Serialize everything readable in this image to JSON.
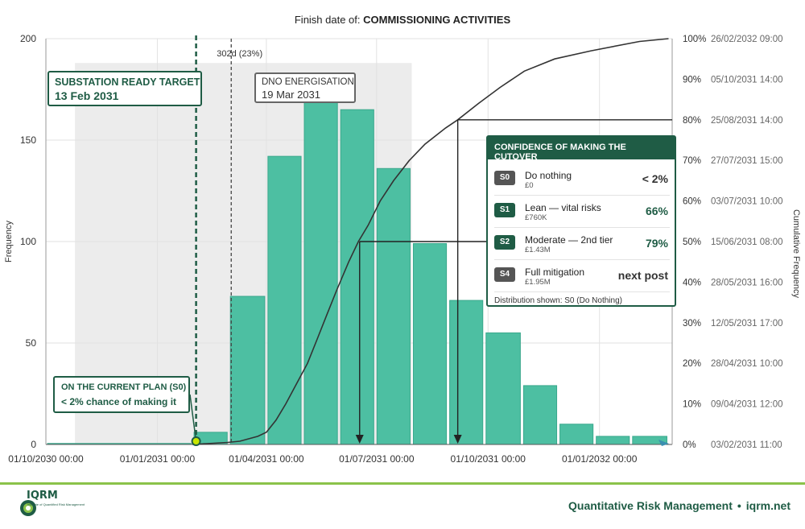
{
  "chart_data": {
    "type": "bar",
    "title": "Finish date of: COMMISSIONING ACTIVITIES",
    "title_prefix": "Finish date of:",
    "title_main": "COMMISSIONING ACTIVITIES",
    "ylabel": "Frequency",
    "y2label": "Cumulative Frequency",
    "ylim": [
      0,
      200
    ],
    "y_ticks": [
      0,
      50,
      100,
      150,
      200
    ],
    "y2_ticks": [
      {
        "pct": "0%",
        "date": "03/02/2031 11:00"
      },
      {
        "pct": "10%",
        "date": "09/04/2031 12:00"
      },
      {
        "pct": "20%",
        "date": "28/04/2031 10:00"
      },
      {
        "pct": "30%",
        "date": "12/05/2031 17:00"
      },
      {
        "pct": "40%",
        "date": "28/05/2031 16:00"
      },
      {
        "pct": "50%",
        "date": "15/06/2031 08:00"
      },
      {
        "pct": "60%",
        "date": "03/07/2031 10:00"
      },
      {
        "pct": "70%",
        "date": "27/07/2031 15:00"
      },
      {
        "pct": "80%",
        "date": "25/08/2031 14:00"
      },
      {
        "pct": "90%",
        "date": "05/10/2031 14:00"
      },
      {
        "pct": "100%",
        "date": "26/02/2032 09:00"
      }
    ],
    "x_ticks": [
      "01/10/2030 00:00",
      "01/01/2031 00:00",
      "01/04/2031 00:00",
      "01/07/2031 00:00",
      "01/10/2031 00:00",
      "01/01/2032 00:00"
    ],
    "x_tick_days": [
      0,
      92,
      182,
      273,
      365,
      457
    ],
    "xlim_days": [
      0,
      517
    ],
    "bars": [
      {
        "start_day": 0,
        "end_day": 121,
        "value": 0.5
      },
      {
        "start_day": 121,
        "end_day": 151,
        "value": 6
      },
      {
        "start_day": 151,
        "end_day": 182,
        "value": 73
      },
      {
        "start_day": 182,
        "end_day": 212,
        "value": 142
      },
      {
        "start_day": 212,
        "end_day": 242,
        "value": 180
      },
      {
        "start_day": 242,
        "end_day": 272,
        "value": 165
      },
      {
        "start_day": 272,
        "end_day": 302,
        "value": 136
      },
      {
        "start_day": 302,
        "end_day": 332,
        "value": 99
      },
      {
        "start_day": 332,
        "end_day": 362,
        "value": 71
      },
      {
        "start_day": 362,
        "end_day": 393,
        "value": 55
      },
      {
        "start_day": 393,
        "end_day": 423,
        "value": 29
      },
      {
        "start_day": 423,
        "end_day": 453,
        "value": 10
      },
      {
        "start_day": 453,
        "end_day": 483,
        "value": 4
      },
      {
        "start_day": 483,
        "end_day": 514,
        "value": 4
      }
    ],
    "cumulative": [
      {
        "day": 121,
        "pct": 0
      },
      {
        "day": 150,
        "pct": 0.5
      },
      {
        "day": 160,
        "pct": 0.8
      },
      {
        "day": 175,
        "pct": 2
      },
      {
        "day": 182,
        "pct": 3
      },
      {
        "day": 190,
        "pct": 6
      },
      {
        "day": 198,
        "pct": 10
      },
      {
        "day": 207,
        "pct": 15
      },
      {
        "day": 216,
        "pct": 20
      },
      {
        "day": 224,
        "pct": 26
      },
      {
        "day": 232,
        "pct": 32
      },
      {
        "day": 240,
        "pct": 38
      },
      {
        "day": 250,
        "pct": 45
      },
      {
        "day": 258,
        "pct": 50
      },
      {
        "day": 266,
        "pct": 54
      },
      {
        "day": 276,
        "pct": 60
      },
      {
        "day": 287,
        "pct": 65
      },
      {
        "day": 300,
        "pct": 70
      },
      {
        "day": 313,
        "pct": 74
      },
      {
        "day": 330,
        "pct": 78
      },
      {
        "day": 340,
        "pct": 80
      },
      {
        "day": 357,
        "pct": 84
      },
      {
        "day": 375,
        "pct": 88
      },
      {
        "day": 395,
        "pct": 92
      },
      {
        "day": 420,
        "pct": 95
      },
      {
        "day": 450,
        "pct": 97
      },
      {
        "day": 490,
        "pct": 99.3
      },
      {
        "day": 514,
        "pct": 100
      }
    ],
    "shaded_region_days": [
      24,
      302
    ],
    "shaded_region_label": "302d (23%)",
    "target_line_day": 124,
    "dno_line_day": 153,
    "p50_day": 259,
    "p80_day": 340,
    "legend_position": "none",
    "grid": true
  },
  "colors": {
    "bar": "#4dbfa2",
    "bar_edge": "#3aa88c",
    "shade": "#ececec",
    "brand": "#1f5c45",
    "accent": "#8bc34a",
    "curve": "#333333"
  },
  "callouts": {
    "target_title": "SUBSTATION READY TARGET",
    "target_date": "13 Feb 2031",
    "dno_title": "DNO ENERGISATION",
    "dno_date": "19 Mar 2031",
    "plan_title": "ON THE CURRENT PLAN (S0)",
    "plan_text": "< 2% chance of making it"
  },
  "confidence": {
    "header": "CONFIDENCE OF MAKING THE CUTOVER",
    "rows": [
      {
        "badge": "S0",
        "label": "Do nothing",
        "cost": "£0",
        "value": "< 2%",
        "badge_color": "#555555",
        "value_color": "#333333"
      },
      {
        "badge": "S1",
        "label": "Lean — vital risks",
        "cost": "£760K",
        "value": "66%",
        "badge_color": "#1f5c45",
        "value_color": "#1f5c45"
      },
      {
        "badge": "S2",
        "label": "Moderate — 2nd tier",
        "cost": "£1.43M",
        "value": "79%",
        "badge_color": "#1f5c45",
        "value_color": "#1f5c45"
      },
      {
        "badge": "S4",
        "label": "Full mitigation",
        "cost": "£1.95M",
        "value": "next post",
        "badge_color": "#555555",
        "value_color": "#333333"
      }
    ],
    "note": "Distribution shown: S0 (Do Nothing)"
  },
  "footer": {
    "logo_text": "IQRM",
    "logo_sub": "Institute of Quantified Risk Management",
    "org": "Quantitative Risk Management",
    "separator": "•",
    "site": "iqrm.net"
  }
}
